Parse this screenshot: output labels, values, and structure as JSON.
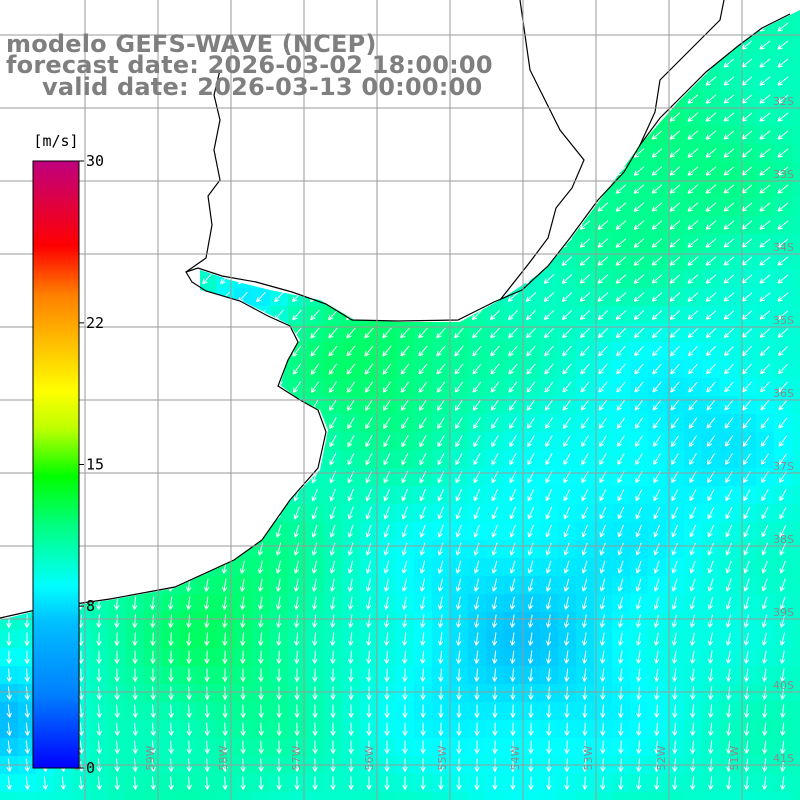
{
  "title": {
    "model": "modelo GEFS-WAVE (NCEP)",
    "forecast": "forecast date: 2026-03-02 18:00:00",
    "valid": "valid date: 2026-03-13 00:00:00"
  },
  "colorbar": {
    "unit": "[m/s]",
    "ticks": [
      "30",
      "22",
      "15",
      "8",
      "0"
    ],
    "tick_values": [
      30,
      22,
      15,
      8,
      0
    ],
    "range": [
      0,
      30
    ]
  },
  "map": {
    "lon_range": [
      -60,
      -50
    ],
    "lat_range": [
      -42,
      -31
    ],
    "lat_labels": [
      "32S",
      "33S",
      "34S",
      "35S",
      "36S",
      "37S",
      "38S",
      "39S",
      "40S",
      "41S"
    ],
    "lat_values": [
      -32,
      -33,
      -34,
      -35,
      -36,
      -37,
      -38,
      -39,
      -40,
      -41
    ],
    "lon_labels": [
      "60W",
      "59W",
      "58W",
      "57W",
      "56W",
      "55W",
      "54W",
      "53W",
      "52W",
      "51W"
    ],
    "lon_values": [
      -60,
      -59,
      -58,
      -57,
      -56,
      -55,
      -54,
      -53,
      -52,
      -51
    ],
    "grid": true,
    "wind_direction_note": ""
  },
  "colors": {
    "title": "#7f7f7f",
    "grid": "#9a9a9a",
    "coast": "#000000",
    "arrow": "#ffffff",
    "land": "#ffffff"
  }
}
